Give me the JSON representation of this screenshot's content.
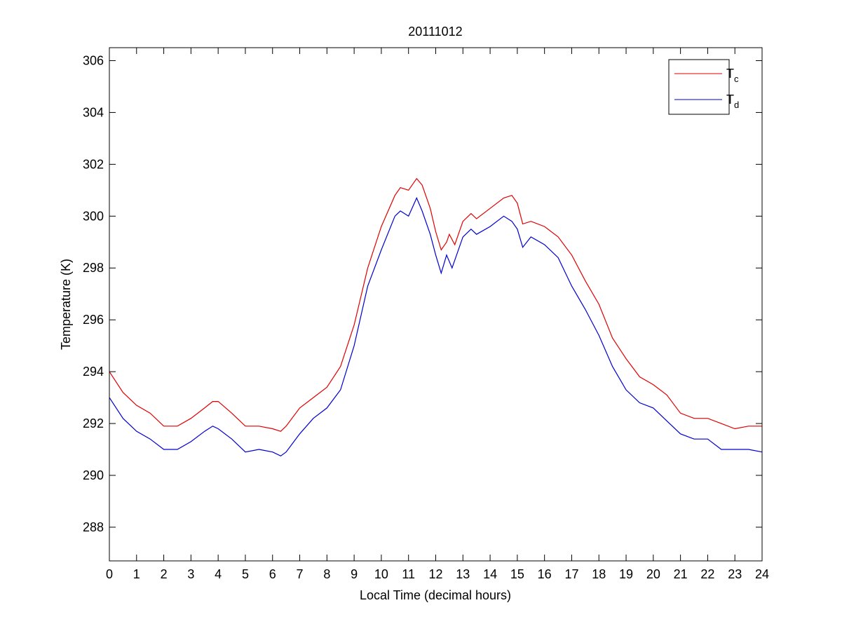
{
  "chart_data": {
    "type": "line",
    "title": "20111012",
    "xlabel": "Local Time (decimal hours)",
    "ylabel": "Temperature (K)",
    "xlim": [
      0,
      24
    ],
    "ylim": [
      286.7,
      306.5
    ],
    "xticks": [
      0,
      1,
      2,
      3,
      4,
      5,
      6,
      7,
      8,
      9,
      10,
      11,
      12,
      13,
      14,
      15,
      16,
      17,
      18,
      19,
      20,
      21,
      22,
      23,
      24
    ],
    "yticks": [
      288,
      290,
      292,
      294,
      296,
      298,
      300,
      302,
      304,
      306
    ],
    "grid": false,
    "legend_position": "top-right",
    "series": [
      {
        "name": "T",
        "subscript": "c",
        "color": "#e00000",
        "x": [
          0,
          0.5,
          1,
          1.5,
          2,
          2.5,
          3,
          3.5,
          3.8,
          4,
          4.5,
          5,
          5.5,
          6,
          6.3,
          6.5,
          7,
          7.5,
          8,
          8.5,
          9,
          9.5,
          10,
          10.5,
          10.7,
          11,
          11.3,
          11.5,
          11.8,
          12,
          12.2,
          12.4,
          12.5,
          12.7,
          13,
          13.3,
          13.5,
          14,
          14.5,
          14.8,
          15,
          15.2,
          15.5,
          16,
          16.5,
          17,
          17.5,
          18,
          18.5,
          19,
          19.5,
          20,
          20.5,
          21,
          21.5,
          22,
          22.5,
          23,
          23.5,
          24
        ],
        "y": [
          294.0,
          293.2,
          292.7,
          292.4,
          291.9,
          291.9,
          292.2,
          292.6,
          292.85,
          292.85,
          292.4,
          291.9,
          291.9,
          291.8,
          291.7,
          291.9,
          292.6,
          293.0,
          293.4,
          294.2,
          295.8,
          298.0,
          299.6,
          300.8,
          301.1,
          301.0,
          301.45,
          301.2,
          300.3,
          299.4,
          298.7,
          299.0,
          299.3,
          298.9,
          299.8,
          300.1,
          299.9,
          300.3,
          300.7,
          300.8,
          300.5,
          299.7,
          299.8,
          299.6,
          299.2,
          298.5,
          297.5,
          296.6,
          295.3,
          294.5,
          293.8,
          293.5,
          293.1,
          292.4,
          292.2,
          292.2,
          292.0,
          291.8,
          291.9,
          291.9
        ]
      },
      {
        "name": "T",
        "subscript": "d",
        "color": "#0000d0",
        "x": [
          0,
          0.5,
          1,
          1.5,
          2,
          2.5,
          3,
          3.5,
          3.8,
          4,
          4.5,
          5,
          5.5,
          6,
          6.3,
          6.5,
          7,
          7.5,
          8,
          8.5,
          9,
          9.5,
          10,
          10.5,
          10.7,
          11,
          11.3,
          11.5,
          11.8,
          12,
          12.2,
          12.4,
          12.6,
          13,
          13.3,
          13.5,
          14,
          14.5,
          14.8,
          15,
          15.2,
          15.5,
          16,
          16.5,
          17,
          17.5,
          18,
          18.5,
          19,
          19.5,
          20,
          20.5,
          21,
          21.5,
          22,
          22.5,
          23,
          23.5,
          24
        ],
        "y": [
          293.0,
          292.2,
          291.7,
          291.4,
          291.0,
          291.0,
          291.3,
          291.7,
          291.9,
          291.8,
          291.4,
          290.9,
          291.0,
          290.9,
          290.75,
          290.9,
          291.6,
          292.2,
          292.6,
          293.3,
          295.0,
          297.3,
          298.7,
          300.0,
          300.2,
          300.0,
          300.7,
          300.2,
          299.3,
          298.5,
          297.8,
          298.5,
          298.0,
          299.2,
          299.5,
          299.3,
          299.6,
          300.0,
          299.8,
          299.5,
          298.8,
          299.2,
          298.9,
          298.4,
          297.3,
          296.4,
          295.4,
          294.2,
          293.3,
          292.8,
          292.6,
          292.1,
          291.6,
          291.4,
          291.4,
          291.0,
          291.0,
          291.0,
          290.9
        ]
      }
    ]
  }
}
